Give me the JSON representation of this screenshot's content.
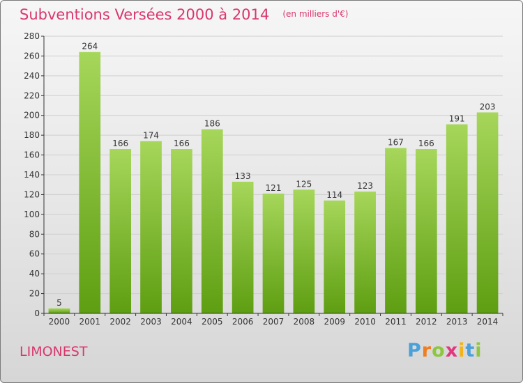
{
  "title": "Subventions Versées 2000 à 2014",
  "subtitle": "(en milliers d'€)",
  "town": "LIMONEST",
  "brand": {
    "letters": [
      "P",
      "r",
      "o",
      "x",
      "i",
      "t",
      "i"
    ],
    "colors": [
      "#4aa0d8",
      "#ef7d22",
      "#8dc63f",
      "#e2367e",
      "#f2b418",
      "#4aa0d8",
      "#8dc63f"
    ]
  },
  "colors": {
    "bar_top": "#a6d65a",
    "bar_bottom": "#5e9e12",
    "title": "#d9376e",
    "grid": "#cfcfcf",
    "axis": "#333333",
    "text": "#333333"
  },
  "chart_data": {
    "type": "bar",
    "title": "Subventions Versées 2000 à 2014",
    "subtitle": "(en milliers d'€)",
    "xlabel": "",
    "ylabel": "",
    "categories": [
      "2000",
      "2001",
      "2002",
      "2003",
      "2004",
      "2005",
      "2006",
      "2007",
      "2008",
      "2009",
      "2010",
      "2011",
      "2012",
      "2013",
      "2014"
    ],
    "values": [
      5,
      264,
      166,
      174,
      166,
      186,
      133,
      121,
      125,
      114,
      123,
      167,
      166,
      191,
      203
    ],
    "ylim": [
      0,
      280
    ],
    "yticks": [
      0,
      20,
      40,
      60,
      80,
      100,
      120,
      140,
      160,
      180,
      200,
      220,
      240,
      260,
      280
    ],
    "grid": true,
    "data_labels": true
  }
}
